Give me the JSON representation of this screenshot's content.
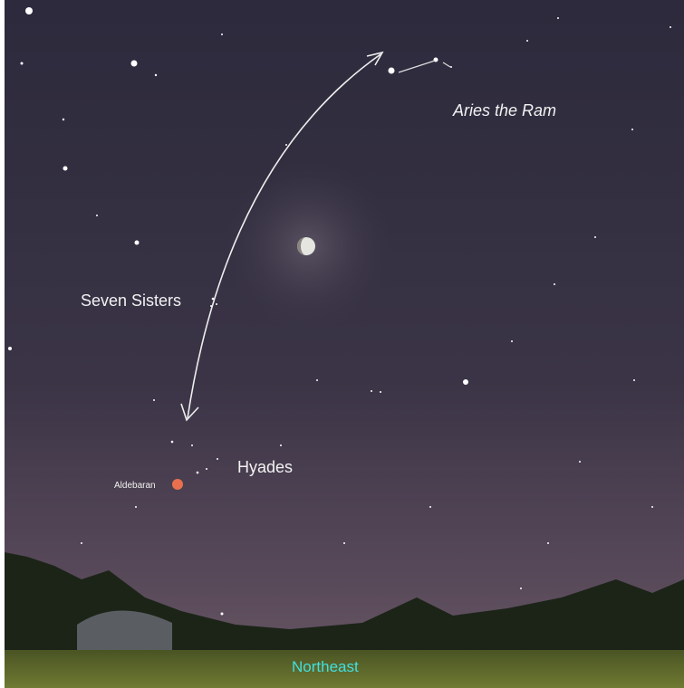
{
  "labels": {
    "aries": "Aries the Ram",
    "pleiades": "Seven Sisters",
    "hyades": "Hyades",
    "aldebaran": "Aldebaran",
    "direction": "Northeast"
  }
}
